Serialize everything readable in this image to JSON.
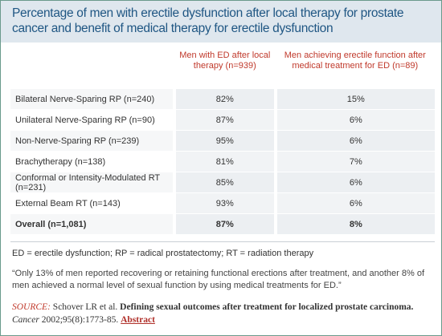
{
  "header": {
    "title": "Percentage of men with erectile dysfunction after local therapy for prostate cancer and benefit of medical therapy for erectile dysfunction"
  },
  "table": {
    "columns": [
      "Men with ED after local therapy (n=939)",
      "Men achieving erectile function after medical treatment for ED (n=89)"
    ],
    "rows": [
      [
        "Bilateral Nerve-Sparing RP (n=240)",
        "82%",
        "15%"
      ],
      [
        "Unilateral Nerve-Sparing RP (n=90)",
        "87%",
        "6%"
      ],
      [
        "Non-Nerve-Sparing RP (n=239)",
        "95%",
        "6%"
      ],
      [
        "Brachytherapy (n=138)",
        "81%",
        "7%"
      ],
      [
        "Conformal or Intensity-Modulated RT (n=231)",
        "85%",
        "6%"
      ],
      [
        "External Beam RT (n=143)",
        "93%",
        "6%"
      ],
      [
        "Overall (n=1,081)",
        "87%",
        "8%"
      ]
    ]
  },
  "notes": {
    "abbreviations": "ED = erectile dysfunction; RP = radical prostatectomy; RT = radiation therapy",
    "quote": "“Only 13% of men reported recovering or retaining functional erections after treatment, and another 8% of men achieved a normal level of sexual function by using medical treatments for ED.”"
  },
  "source": {
    "label": "SOURCE:",
    "authors": "Schover LR et al.",
    "title": "Defining sexual outcomes after treatment for localized prostate carcinoma.",
    "journal": "Cancer",
    "citation": "2002;95(8):1773-85.",
    "link": "Abstract"
  }
}
